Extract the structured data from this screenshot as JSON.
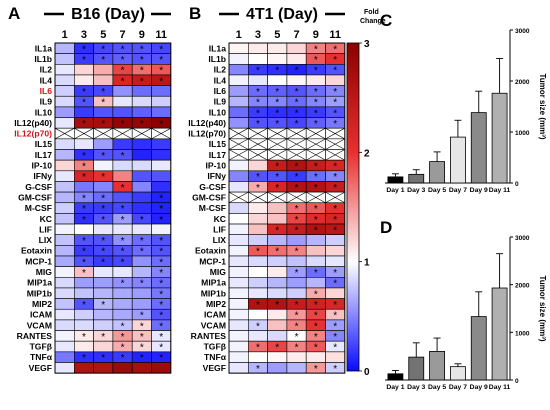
{
  "figure": {
    "panel_A": {
      "letter": "A",
      "title": "B16 (Day)"
    },
    "panel_B": {
      "letter": "B",
      "title": "4T1 (Day)"
    },
    "panel_C": {
      "letter": "C"
    },
    "panel_D": {
      "letter": "D"
    }
  },
  "chart_data": [
    {
      "type": "heatmap",
      "panel": "A",
      "title": "B16 (Day)",
      "columns": [
        "1",
        "3",
        "5",
        "7",
        "9",
        "11"
      ],
      "rows": [
        "IL1a",
        "IL1b",
        "IL2",
        "IL4",
        "IL6",
        "IL9",
        "IL10",
        "IL12(p40)",
        "IL12(p70)",
        "IL15",
        "IL17",
        "IP-10",
        "IFNy",
        "G-CSF",
        "GM-CSF",
        "M-CSF",
        "KC",
        "LIF",
        "LIX",
        "Eotaxin",
        "MCP-1",
        "MIG",
        "MIP1a",
        "MIP1b",
        "MIP2",
        "ICAM",
        "VCAM",
        "RANTES",
        "TGFβ",
        "TNFα",
        "VEGF"
      ],
      "highlighted_rows": [
        "IL6",
        "IL12(p70)"
      ],
      "highlight_color": "#d0141c",
      "values": [
        [
          0.7,
          0.15,
          0.25,
          0.3,
          0.3,
          0.25
        ],
        [
          0.75,
          0.2,
          0.3,
          0.35,
          0.3,
          0.3
        ],
        [
          0.9,
          1.2,
          1.4,
          1.9,
          1.7,
          1.8
        ],
        [
          0.85,
          1.1,
          1.3,
          2.2,
          2.4,
          2.5
        ],
        [
          0.8,
          0.2,
          0.25,
          0.55,
          0.4,
          0.4
        ],
        [
          0.85,
          0.3,
          1.3,
          0.9,
          0.85,
          0.8
        ],
        [
          0.6,
          0.2,
          0.3,
          0.3,
          0.35,
          0.4
        ],
        [
          0.9,
          2.7,
          2.7,
          2.9,
          2.9,
          3.0
        ],
        [
          null,
          null,
          null,
          null,
          null,
          null
        ],
        [
          0.85,
          0.9,
          0.6,
          0.2,
          0.15,
          0.2
        ],
        [
          0.7,
          0.15,
          0.3,
          0.3,
          0.1,
          0.15
        ],
        [
          1.2,
          1.6,
          0.95,
          0.85,
          0.85,
          0.9
        ],
        [
          0.9,
          2.2,
          2.0,
          1.6,
          0.3,
          0.3
        ],
        [
          0.75,
          0.45,
          0.5,
          2.0,
          0.5,
          0.15
        ],
        [
          0.7,
          0.5,
          0.4,
          0.3,
          0.2,
          0.1
        ],
        [
          0.8,
          0.2,
          0.2,
          0.25,
          0.15,
          0.1
        ],
        [
          0.75,
          0.15,
          0.3,
          0.6,
          0.25,
          0.1
        ],
        [
          0.95,
          1.0,
          0.9,
          0.9,
          0.9,
          0.95
        ],
        [
          0.75,
          0.3,
          0.3,
          0.55,
          0.4,
          0.3
        ],
        [
          0.7,
          0.2,
          0.25,
          0.3,
          0.4,
          0.3
        ],
        [
          0.65,
          0.3,
          0.2,
          0.25,
          0.55,
          0.4
        ],
        [
          0.95,
          1.3,
          0.9,
          0.9,
          0.7,
          0.5
        ],
        [
          0.85,
          0.6,
          0.6,
          0.55,
          0.5,
          0.4
        ],
        [
          0.85,
          0.75,
          0.7,
          0.65,
          0.6,
          0.45
        ],
        [
          0.75,
          0.3,
          0.7,
          0.65,
          0.6,
          0.4
        ],
        [
          0.9,
          0.8,
          0.7,
          0.65,
          0.6,
          0.3
        ],
        [
          0.85,
          0.85,
          0.8,
          0.75,
          1.2,
          0.4
        ],
        [
          0.95,
          1.1,
          1.2,
          1.5,
          1.3,
          0.9
        ],
        [
          0.9,
          1.1,
          1.2,
          1.4,
          1.2,
          0.9
        ],
        [
          0.45,
          0.15,
          0.15,
          0.2,
          0.1,
          0.1
        ],
        [
          0.9,
          2.6,
          2.6,
          2.8,
          2.7,
          2.8
        ]
      ],
      "stars": [
        [
          0,
          1,
          1,
          1,
          1,
          1
        ],
        [
          0,
          1,
          1,
          1,
          1,
          1
        ],
        [
          0,
          0,
          0,
          1,
          1,
          1
        ],
        [
          0,
          0,
          0,
          1,
          1,
          1
        ],
        [
          0,
          1,
          1,
          0,
          0,
          0
        ],
        [
          0,
          1,
          1,
          0,
          0,
          0
        ],
        [
          0,
          0,
          0,
          0,
          0,
          0
        ],
        [
          0,
          1,
          1,
          1,
          1,
          1
        ],
        [
          0,
          0,
          0,
          0,
          0,
          0
        ],
        [
          0,
          0,
          0,
          0,
          0,
          0
        ],
        [
          0,
          1,
          1,
          1,
          0,
          0
        ],
        [
          0,
          1,
          0,
          0,
          0,
          0
        ],
        [
          0,
          1,
          1,
          0,
          0,
          0
        ],
        [
          0,
          0,
          0,
          1,
          0,
          0
        ],
        [
          0,
          1,
          1,
          0,
          0,
          1
        ],
        [
          0,
          1,
          1,
          1,
          0,
          1
        ],
        [
          0,
          1,
          1,
          1,
          1,
          1
        ],
        [
          0,
          0,
          0,
          0,
          0,
          0
        ],
        [
          0,
          1,
          1,
          1,
          1,
          1
        ],
        [
          0,
          1,
          1,
          1,
          1,
          1
        ],
        [
          0,
          1,
          1,
          1,
          0,
          1
        ],
        [
          0,
          1,
          0,
          0,
          0,
          1
        ],
        [
          0,
          0,
          0,
          1,
          1,
          1
        ],
        [
          0,
          0,
          0,
          0,
          0,
          1
        ],
        [
          0,
          1,
          1,
          0,
          0,
          1
        ],
        [
          0,
          0,
          0,
          0,
          1,
          1
        ],
        [
          0,
          0,
          0,
          1,
          1,
          1
        ],
        [
          0,
          1,
          1,
          1,
          1,
          1
        ],
        [
          0,
          0,
          0,
          1,
          1,
          1
        ],
        [
          0,
          1,
          1,
          1,
          1,
          1
        ],
        [
          0,
          0,
          0,
          0,
          0,
          0
        ]
      ]
    },
    {
      "type": "heatmap",
      "panel": "B",
      "title": "4T1 (Day)",
      "columns": [
        "1",
        "3",
        "5",
        "7",
        "9",
        "11"
      ],
      "rows": [
        "IL1a",
        "IL1b",
        "IL2",
        "IL4",
        "IL6",
        "IL9",
        "IL10",
        "IL12(p40)",
        "IL12(p70)",
        "IL15",
        "IL17",
        "IP-10",
        "IFNy",
        "G-CSF",
        "GM-CSF",
        "M-CSF",
        "KC",
        "LIF",
        "LIX",
        "Eotaxin",
        "MCP-1",
        "MIG",
        "MIP1a",
        "MIP1b",
        "MIP2",
        "ICAM",
        "VCAM",
        "RANTES",
        "TGFβ",
        "TNFα",
        "VEGF"
      ],
      "values": [
        [
          1.05,
          1.1,
          1.1,
          1.2,
          1.6,
          1.7
        ],
        [
          0.95,
          1.0,
          1.05,
          1.1,
          1.8,
          2.0
        ],
        [
          0.5,
          0.2,
          0.15,
          0.1,
          0.2,
          0.3
        ],
        [
          0.95,
          0.9,
          1.0,
          1.05,
          1.1,
          1.2
        ],
        [
          0.6,
          0.4,
          0.35,
          0.3,
          0.4,
          0.5
        ],
        [
          0.7,
          0.5,
          0.5,
          0.4,
          0.5,
          0.6
        ],
        [
          0.4,
          0.2,
          0.15,
          0.15,
          0.2,
          0.3
        ],
        [
          0.55,
          0.3,
          0.3,
          0.25,
          0.35,
          0.45
        ],
        [
          null,
          null,
          null,
          null,
          null,
          null
        ],
        [
          null,
          null,
          null,
          null,
          null,
          null
        ],
        [
          null,
          null,
          null,
          null,
          null,
          null
        ],
        [
          0.95,
          1.2,
          2.4,
          2.6,
          2.4,
          2.2
        ],
        [
          0.5,
          0.3,
          0.3,
          0.2,
          0.4,
          0.5
        ],
        [
          0.9,
          1.4,
          2.2,
          2.6,
          2.6,
          2.4
        ],
        [
          null,
          null,
          null,
          null,
          null,
          null
        ],
        [
          0.85,
          1.1,
          1.3,
          1.7,
          1.8,
          2.0
        ],
        [
          1.0,
          1.2,
          1.3,
          1.9,
          2.1,
          2.2
        ],
        [
          0.95,
          1.3,
          2.2,
          2.4,
          2.6,
          2.5
        ],
        [
          0.9,
          0.8,
          0.7,
          0.6,
          0.7,
          0.8
        ],
        [
          0.95,
          1.8,
          1.7,
          1.6,
          1.3,
          1.2
        ],
        [
          0.9,
          0.85,
          0.8,
          0.75,
          0.85,
          0.9
        ],
        [
          0.95,
          1.0,
          1.1,
          0.6,
          0.4,
          0.6
        ],
        [
          0.9,
          0.8,
          0.7,
          0.6,
          0.7,
          0.4
        ],
        [
          0.95,
          0.9,
          0.85,
          0.8,
          1.4,
          1.2
        ],
        [
          0.95,
          2.6,
          2.6,
          2.4,
          2.3,
          2.2
        ],
        [
          0.95,
          1.0,
          1.1,
          1.5,
          1.9,
          1.3
        ],
        [
          0.9,
          0.8,
          1.3,
          1.6,
          2.0,
          0.6
        ],
        [
          0.95,
          0.9,
          0.85,
          1.0,
          1.6,
          0.5
        ],
        [
          0.95,
          1.7,
          1.9,
          1.6,
          1.8,
          0.9
        ],
        [
          0.95,
          1.0,
          1.05,
          1.1,
          1.1,
          1.15
        ],
        [
          0.9,
          0.7,
          0.6,
          0.7,
          1.5,
          0.8
        ]
      ],
      "stars": [
        [
          0,
          0,
          0,
          0,
          1,
          1
        ],
        [
          0,
          0,
          0,
          0,
          1,
          1
        ],
        [
          0,
          1,
          1,
          1,
          1,
          1
        ],
        [
          0,
          0,
          0,
          0,
          0,
          0
        ],
        [
          0,
          1,
          1,
          1,
          1,
          1
        ],
        [
          0,
          1,
          1,
          1,
          1,
          1
        ],
        [
          0,
          1,
          1,
          1,
          1,
          1
        ],
        [
          0,
          1,
          1,
          1,
          1,
          1
        ],
        [
          0,
          0,
          0,
          0,
          0,
          0
        ],
        [
          0,
          0,
          0,
          0,
          0,
          0
        ],
        [
          0,
          0,
          0,
          0,
          0,
          0
        ],
        [
          0,
          0,
          1,
          1,
          1,
          1
        ],
        [
          0,
          1,
          1,
          1,
          1,
          1
        ],
        [
          0,
          1,
          1,
          1,
          1,
          1
        ],
        [
          0,
          0,
          0,
          0,
          0,
          0
        ],
        [
          0,
          0,
          0,
          1,
          1,
          1
        ],
        [
          0,
          0,
          0,
          1,
          1,
          1
        ],
        [
          0,
          0,
          1,
          1,
          1,
          1
        ],
        [
          0,
          0,
          0,
          0,
          0,
          0
        ],
        [
          0,
          1,
          1,
          1,
          0,
          0
        ],
        [
          0,
          0,
          0,
          0,
          0,
          0
        ],
        [
          0,
          0,
          0,
          1,
          1,
          1
        ],
        [
          0,
          0,
          0,
          0,
          0,
          1
        ],
        [
          0,
          0,
          0,
          0,
          1,
          0
        ],
        [
          0,
          1,
          1,
          1,
          1,
          1
        ],
        [
          0,
          0,
          0,
          1,
          1,
          1
        ],
        [
          0,
          1,
          0,
          1,
          1,
          1
        ],
        [
          0,
          0,
          0,
          1,
          1,
          1
        ],
        [
          0,
          1,
          1,
          1,
          1,
          1
        ],
        [
          0,
          0,
          0,
          0,
          0,
          0
        ],
        [
          0,
          1,
          0,
          0,
          1,
          1
        ]
      ]
    },
    {
      "type": "colorbar",
      "label": "Fold Change",
      "range": [
        0,
        3
      ],
      "ticks": [
        "0",
        "1",
        "2",
        "3"
      ],
      "stops": [
        {
          "value": 0,
          "color": "#0a0aff"
        },
        {
          "value": 1,
          "color": "#ffffff"
        },
        {
          "value": 2,
          "color": "#e83030"
        },
        {
          "value": 3,
          "color": "#8c0000"
        }
      ]
    },
    {
      "type": "bar",
      "panel": "C",
      "categories": [
        "Day 1",
        "Day 3",
        "Day 5",
        "Day 7",
        "Day 9",
        "Day 11"
      ],
      "values": [
        120,
        170,
        420,
        900,
        1380,
        1760
      ],
      "errors": [
        60,
        90,
        190,
        330,
        420,
        680
      ],
      "bar_colors": [
        "#000000",
        "#737373",
        "#9a9a9a",
        "#e6e6e6",
        "#8a8a8a",
        "#b0b0b0"
      ],
      "ylabel": "Tumor size (mm³)",
      "ylim": [
        0,
        3000
      ],
      "yticks": [
        "0",
        "1000",
        "2000",
        "3000"
      ]
    },
    {
      "type": "bar",
      "panel": "D",
      "categories": [
        "Day 1",
        "Day 3",
        "Day 5",
        "Day 7",
        "Day 9",
        "Day 11"
      ],
      "values": [
        130,
        480,
        600,
        280,
        1330,
        1930
      ],
      "errors": [
        70,
        300,
        280,
        60,
        520,
        720
      ],
      "bar_colors": [
        "#000000",
        "#737373",
        "#9a9a9a",
        "#e6e6e6",
        "#8a8a8a",
        "#b0b0b0"
      ],
      "ylabel": "Tumor size (mm³)",
      "ylim": [
        0,
        3000
      ],
      "yticks": [
        "0",
        "1000",
        "2000",
        "3000"
      ]
    }
  ]
}
